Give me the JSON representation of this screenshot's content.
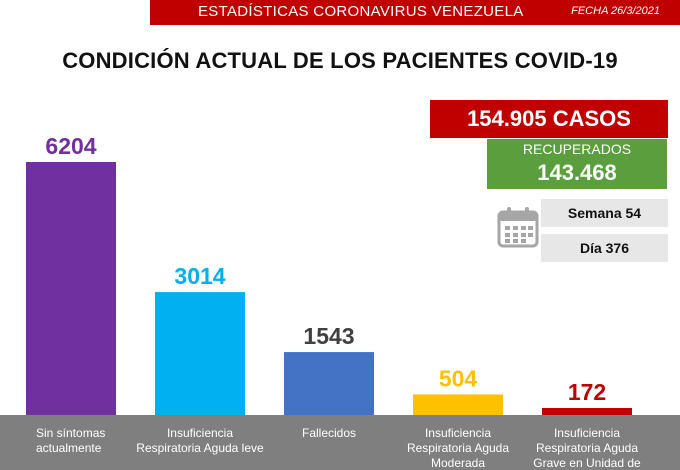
{
  "header": {
    "title": "ESTADÍSTICAS CORONAVIRUS VENEZUELA",
    "date": "FECHA 26/3/2021",
    "color": "#c00000"
  },
  "summary": {
    "cases": "154.905 CASOS",
    "recovered_label": "RECUPERADOS",
    "recovered_value": "143.468",
    "week": "Semana 54",
    "day": "Día 376",
    "calendar_icon": "calendar-icon"
  },
  "chart_data": {
    "type": "bar",
    "title": "CONDICIÓN ACTUAL DE LOS PACIENTES COVID-19",
    "categories": [
      [
        "Sin síntomas",
        "actualmente"
      ],
      [
        "Insuficiencia",
        "Respiratoria Aguda leve"
      ],
      [
        "Fallecidos"
      ],
      [
        "Insuficiencia",
        "Respiratoria Aguda",
        "Moderada"
      ],
      [
        "Insuficiencia",
        "Respiratoria Aguda",
        "Grave en Unidad de"
      ]
    ],
    "values": [
      6204,
      3014,
      1543,
      504,
      172
    ],
    "bar_colors": [
      "#7030a0",
      "#00b0f0",
      "#4472c4",
      "#ffc000",
      "#c00000"
    ],
    "label_colors": [
      "#7030a0",
      "#00b0f0",
      "#404040",
      "#ffc000",
      "#c00000"
    ],
    "ylim": [
      0,
      6204
    ],
    "grid": false
  }
}
